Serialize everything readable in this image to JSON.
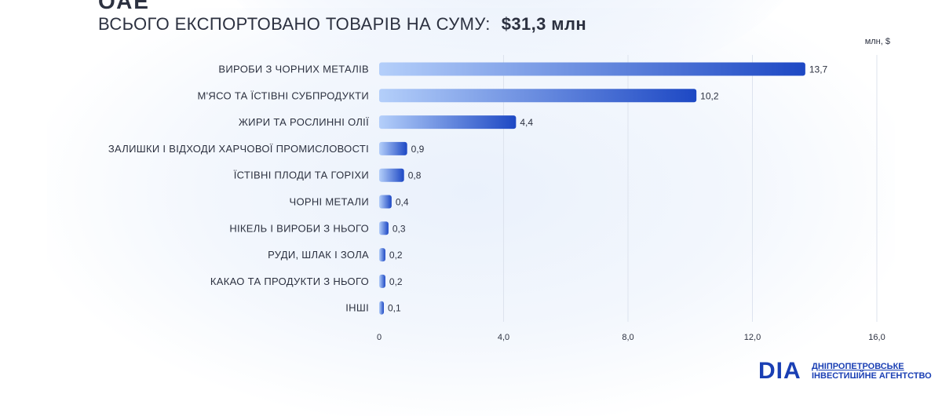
{
  "header": {
    "title_fragment": "ОАЕ",
    "headline": "ВСЬОГО ЕКСПОРТОВАНО ТОВАРІВ НА СУМУ:",
    "total": "$31,3 млн"
  },
  "footer": {
    "logo_mark": "DIA",
    "logo_text_line1": "ДНІПРОПЕТРОВСЬКЕ",
    "logo_text_line2": "ІНВЕСТИЦІЙНЕ АГЕНТСТВО"
  },
  "colors": {
    "text": "#2c3140",
    "bar_start": "#b4cffa",
    "bar_end": "#1d48c4",
    "grid": "#dde3ee",
    "brand": "#1a3fb4"
  },
  "chart_data": {
    "type": "bar",
    "orientation": "horizontal",
    "unit_label": "млн, $",
    "categories": [
      "ВИРОБИ З ЧОРНИХ МЕТАЛІВ",
      "М'ЯСО ТА ЇСТІВНІ СУБПРОДУКТИ",
      "ЖИРИ ТА РОСЛИННІ ОЛІЇ",
      "ЗАЛИШКИ І ВІДХОДИ ХАРЧОВОЇ ПРОМИСЛОВОСТІ",
      "ЇСТІВНІ ПЛОДИ ТА ГОРІХИ",
      "ЧОРНІ МЕТАЛИ",
      "НІКЕЛЬ І ВИРОБИ З НЬОГО",
      "РУДИ, ШЛАК І ЗОЛА",
      "КАКАО ТА ПРОДУКТИ З НЬОГО",
      "ІНШІ"
    ],
    "values": [
      13.7,
      10.2,
      4.4,
      0.9,
      0.8,
      0.4,
      0.3,
      0.2,
      0.2,
      0.1
    ],
    "value_labels": [
      "13,7",
      "10,2",
      "4,4",
      "0,9",
      "0,8",
      "0,4",
      "0,3",
      "0,2",
      "0,2",
      "0,1"
    ],
    "xlim": [
      0,
      16
    ],
    "xticks": [
      0,
      4,
      8,
      12,
      16
    ],
    "xtick_labels": [
      "0",
      "4,0",
      "8,0",
      "12,0",
      "16,0"
    ],
    "grid": true
  }
}
